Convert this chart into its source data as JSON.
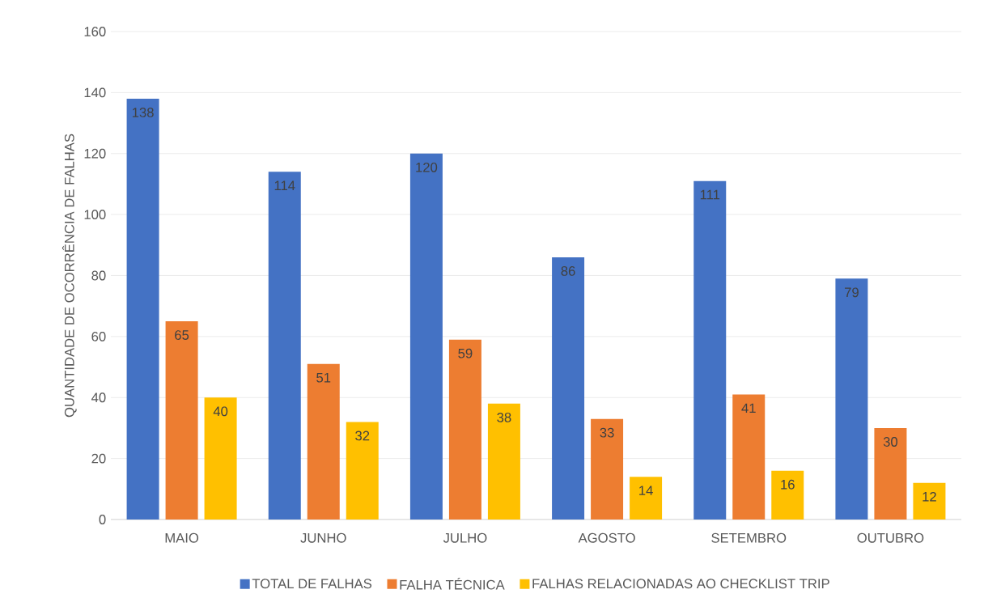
{
  "chart_data": {
    "type": "bar",
    "ylabel": "QUANTIDADE DE OCORRÊNCIA DE FALHAS",
    "categories": [
      "MAIO",
      "JUNHO",
      "JULHO",
      "AGOSTO",
      "SETEMBRO",
      "OUTUBRO"
    ],
    "series": [
      {
        "name": "TOTAL DE FALHAS",
        "color": "#4472c4",
        "values": [
          138,
          114,
          120,
          86,
          111,
          79
        ]
      },
      {
        "name": "FALHA TÉCNICA",
        "color": "#ed7d31",
        "values": [
          65,
          51,
          59,
          33,
          41,
          30
        ]
      },
      {
        "name": "FALHAS RELACIONADAS AO CHECKLIST TRIP",
        "color": "#ffc000",
        "values": [
          40,
          32,
          38,
          14,
          16,
          12
        ]
      }
    ],
    "ylim": [
      0,
      160
    ],
    "yticks": [
      0,
      20,
      40,
      60,
      80,
      100,
      120,
      140,
      160
    ],
    "grid": "y",
    "legend": "bottom",
    "data_labels": true
  }
}
